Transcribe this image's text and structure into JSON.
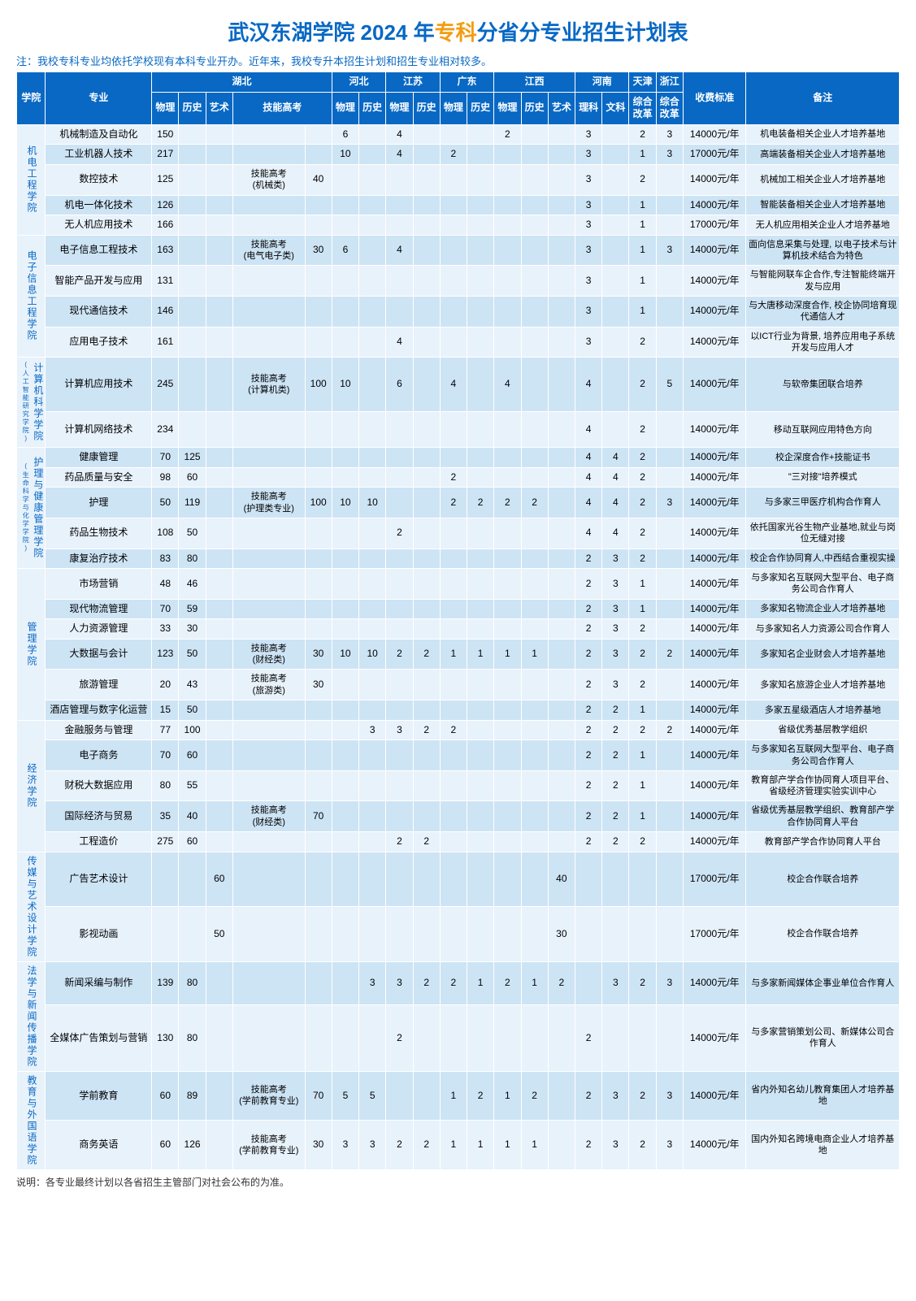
{
  "title_pre": "武汉东湖学院 2024 年",
  "title_hl": "专科",
  "title_post": "分省分专业招生计划表",
  "note_top": "注：我校专科专业均依托学校现有本科专业开办。近年来，我校专升本招生计划和招生专业相对较多。",
  "note_bottom": "说明：各专业最终计划以各省招生主管部门对社会公布的为准。",
  "head": {
    "dept": "学院",
    "major": "专业",
    "prov_hubei": "湖北",
    "prov_hebei": "河北",
    "prov_jiangsu": "江苏",
    "prov_guangdong": "广东",
    "prov_jiangxi": "江西",
    "prov_henan": "河南",
    "prov_tianjin": "天津",
    "prov_zhejiang": "浙江",
    "fee": "收费标准",
    "remark": "备注",
    "wl": "物理",
    "ls": "历史",
    "ys": "艺术",
    "skill": "技能高考",
    "lk": "理科",
    "wk": "文科",
    "gg": "综合改革"
  },
  "depts": [
    {
      "name": "机电工程学院",
      "extra": "",
      "rows": [
        {
          "major": "机械制造及自动化",
          "v": [
            "150",
            "",
            "",
            "",
            "",
            "6",
            "",
            "4",
            "",
            "",
            "",
            "2",
            "",
            "",
            "3",
            "",
            "2",
            "3"
          ],
          "fee": "14000元/年",
          "rm": "机电装备相关企业人才培养基地"
        },
        {
          "major": "工业机器人技术",
          "v": [
            "217",
            "",
            "",
            "",
            "",
            "10",
            "",
            "4",
            "",
            "2",
            "",
            "",
            "",
            "",
            "3",
            "",
            "1",
            "3"
          ],
          "fee": "17000元/年",
          "rm": "高端装备相关企业人才培养基地"
        },
        {
          "major": "数控技术",
          "v": [
            "125",
            "",
            "",
            "技能高考\n(机械类)",
            "40",
            "",
            "",
            "",
            "",
            "",
            "",
            "",
            "",
            "",
            "3",
            "",
            "2",
            ""
          ],
          "fee": "14000元/年",
          "rm": "机械加工相关企业人才培养基地"
        },
        {
          "major": "机电一体化技术",
          "v": [
            "126",
            "",
            "",
            "",
            "",
            "",
            "",
            "",
            "",
            "",
            "",
            "",
            "",
            "",
            "3",
            "",
            "1",
            ""
          ],
          "fee": "14000元/年",
          "rm": "智能装备相关企业人才培养基地"
        },
        {
          "major": "无人机应用技术",
          "v": [
            "166",
            "",
            "",
            "",
            "",
            "",
            "",
            "",
            "",
            "",
            "",
            "",
            "",
            "",
            "3",
            "",
            "1",
            ""
          ],
          "fee": "17000元/年",
          "rm": "无人机应用相关企业人才培养基地"
        }
      ]
    },
    {
      "name": "电子信息工程学院",
      "extra": "",
      "rows": [
        {
          "major": "电子信息工程技术",
          "v": [
            "163",
            "",
            "",
            "技能高考\n(电气电子类)",
            "30",
            "6",
            "",
            "4",
            "",
            "",
            "",
            "",
            "",
            "",
            "3",
            "",
            "1",
            "3"
          ],
          "fee": "14000元/年",
          "rm": "面向信息采集与处理, 以电子技术与计算机技术结合为特色"
        },
        {
          "major": "智能产品开发与应用",
          "v": [
            "131",
            "",
            "",
            "",
            "",
            "",
            "",
            "",
            "",
            "",
            "",
            "",
            "",
            "",
            "3",
            "",
            "1",
            ""
          ],
          "fee": "14000元/年",
          "rm": "与智能网联车企合作,专注智能终端开发与应用"
        },
        {
          "major": "现代通信技术",
          "v": [
            "146",
            "",
            "",
            "",
            "",
            "",
            "",
            "",
            "",
            "",
            "",
            "",
            "",
            "",
            "3",
            "",
            "1",
            ""
          ],
          "fee": "14000元/年",
          "rm": "与大唐移动深度合作, 校企协同培育现代通信人才"
        },
        {
          "major": "应用电子技术",
          "v": [
            "161",
            "",
            "",
            "",
            "",
            "",
            "",
            "4",
            "",
            "",
            "",
            "",
            "",
            "",
            "3",
            "",
            "2",
            ""
          ],
          "fee": "14000元/年",
          "rm": "以ICT行业为背景, 培养应用电子系统开发与应用人才"
        }
      ]
    },
    {
      "name": "计算机科学学院",
      "extra": "(人工智能研究学院)",
      "rows": [
        {
          "major": "计算机应用技术",
          "v": [
            "245",
            "",
            "",
            "技能高考\n(计算机类)",
            "100",
            "10",
            "",
            "6",
            "",
            "4",
            "",
            "4",
            "",
            "",
            "4",
            "",
            "2",
            "5"
          ],
          "fee": "14000元/年",
          "rm": "与软帝集团联合培养"
        },
        {
          "major": "计算机网络技术",
          "v": [
            "234",
            "",
            "",
            "",
            "",
            "",
            "",
            "",
            "",
            "",
            "",
            "",
            "",
            "",
            "4",
            "",
            "2",
            ""
          ],
          "fee": "14000元/年",
          "rm": "移动互联网应用特色方向"
        }
      ]
    },
    {
      "name": "护理与健康管理学院",
      "extra": "(生命科学与化学学院)",
      "rows": [
        {
          "major": "健康管理",
          "v": [
            "70",
            "125",
            "",
            "",
            "",
            "",
            "",
            "",
            "",
            "",
            "",
            "",
            "",
            "",
            "4",
            "4",
            "2",
            ""
          ],
          "fee": "14000元/年",
          "rm": "校企深度合作+技能证书"
        },
        {
          "major": "药品质量与安全",
          "v": [
            "98",
            "60",
            "",
            "",
            "",
            "",
            "",
            "",
            "",
            "2",
            "",
            "",
            "",
            "",
            "4",
            "4",
            "2",
            ""
          ],
          "fee": "14000元/年",
          "rm": "\"三对接\"培养模式"
        },
        {
          "major": "护理",
          "v": [
            "50",
            "119",
            "",
            "技能高考\n(护理类专业)",
            "100",
            "10",
            "10",
            "",
            "",
            "2",
            "2",
            "2",
            "2",
            "",
            "4",
            "4",
            "2",
            "3"
          ],
          "fee": "14000元/年",
          "rm": "与多家三甲医疗机构合作育人"
        },
        {
          "major": "药品生物技术",
          "v": [
            "108",
            "50",
            "",
            "",
            "",
            "",
            "",
            "2",
            "",
            "",
            "",
            "",
            "",
            "",
            "4",
            "4",
            "2",
            ""
          ],
          "fee": "14000元/年",
          "rm": "依托国家光谷生物产业基地,就业与岗位无缝对接"
        },
        {
          "major": "康复治疗技术",
          "v": [
            "83",
            "80",
            "",
            "",
            "",
            "",
            "",
            "",
            "",
            "",
            "",
            "",
            "",
            "",
            "2",
            "3",
            "2",
            ""
          ],
          "fee": "14000元/年",
          "rm": "校企合作协同育人,中西结合重视实操"
        }
      ]
    },
    {
      "name": "管理学院",
      "extra": "",
      "rows": [
        {
          "major": "市场营销",
          "v": [
            "48",
            "46",
            "",
            "",
            "",
            "",
            "",
            "",
            "",
            "",
            "",
            "",
            "",
            "",
            "2",
            "3",
            "1",
            ""
          ],
          "fee": "14000元/年",
          "rm": "与多家知名互联网大型平台、电子商务公司合作育人"
        },
        {
          "major": "现代物流管理",
          "v": [
            "70",
            "59",
            "",
            "",
            "",
            "",
            "",
            "",
            "",
            "",
            "",
            "",
            "",
            "",
            "2",
            "3",
            "1",
            ""
          ],
          "fee": "14000元/年",
          "rm": "多家知名物流企业人才培养基地"
        },
        {
          "major": "人力资源管理",
          "v": [
            "33",
            "30",
            "",
            "",
            "",
            "",
            "",
            "",
            "",
            "",
            "",
            "",
            "",
            "",
            "2",
            "3",
            "2",
            ""
          ],
          "fee": "14000元/年",
          "rm": "与多家知名人力资源公司合作育人"
        },
        {
          "major": "大数据与会计",
          "v": [
            "123",
            "50",
            "",
            "技能高考\n(财经类)",
            "30",
            "10",
            "10",
            "2",
            "2",
            "1",
            "1",
            "1",
            "1",
            "",
            "2",
            "3",
            "2",
            "2"
          ],
          "fee": "14000元/年",
          "rm": "多家知名企业财会人才培养基地"
        },
        {
          "major": "旅游管理",
          "v": [
            "20",
            "43",
            "",
            "技能高考\n(旅游类)",
            "30",
            "",
            "",
            "",
            "",
            "",
            "",
            "",
            "",
            "",
            "2",
            "3",
            "2",
            ""
          ],
          "fee": "14000元/年",
          "rm": "多家知名旅游企业人才培养基地"
        },
        {
          "major": "酒店管理与数字化运营",
          "v": [
            "15",
            "50",
            "",
            "",
            "",
            "",
            "",
            "",
            "",
            "",
            "",
            "",
            "",
            "",
            "2",
            "2",
            "1",
            ""
          ],
          "fee": "14000元/年",
          "rm": "多家五星级酒店人才培养基地"
        }
      ]
    },
    {
      "name": "经济学院",
      "extra": "",
      "rows": [
        {
          "major": "金融服务与管理",
          "v": [
            "77",
            "100",
            "",
            "",
            "",
            "",
            "3",
            "3",
            "2",
            "2",
            "",
            "",
            "",
            "",
            "2",
            "2",
            "2",
            "2"
          ],
          "fee": "14000元/年",
          "rm": "省级优秀基层教学组织"
        },
        {
          "major": "电子商务",
          "v": [
            "70",
            "60",
            "",
            "",
            "",
            "",
            "",
            "",
            "",
            "",
            "",
            "",
            "",
            "",
            "2",
            "2",
            "1",
            ""
          ],
          "fee": "14000元/年",
          "rm": "与多家知名互联网大型平台、电子商务公司合作育人"
        },
        {
          "major": "财税大数据应用",
          "v": [
            "80",
            "55",
            "",
            "",
            "",
            "",
            "",
            "",
            "",
            "",
            "",
            "",
            "",
            "",
            "2",
            "2",
            "1",
            ""
          ],
          "fee": "14000元/年",
          "rm": "教育部产学合作协同育人项目平台、省级经济管理实验实训中心"
        },
        {
          "major": "国际经济与贸易",
          "v": [
            "35",
            "40",
            "",
            "技能高考\n(财经类)",
            "70",
            "",
            "",
            "",
            "",
            "",
            "",
            "",
            "",
            "",
            "2",
            "2",
            "1",
            ""
          ],
          "fee": "14000元/年",
          "rm": "省级优秀基层教学组织、教育部产学合作协同育人平台"
        },
        {
          "major": "工程造价",
          "v": [
            "275",
            "60",
            "",
            "",
            "",
            "",
            "",
            "2",
            "2",
            "",
            "",
            "",
            "",
            "",
            "2",
            "2",
            "2",
            ""
          ],
          "fee": "14000元/年",
          "rm": "教育部产学合作协同育人平台"
        }
      ]
    },
    {
      "name": "传媒与艺术设计学院",
      "extra": "",
      "rows": [
        {
          "major": "广告艺术设计",
          "v": [
            "",
            "",
            "60",
            "",
            "",
            "",
            "",
            "",
            "",
            "",
            "",
            "",
            "",
            "40",
            "",
            "",
            "",
            ""
          ],
          "fee": "17000元/年",
          "rm": "校企合作联合培养"
        },
        {
          "major": "影视动画",
          "v": [
            "",
            "",
            "50",
            "",
            "",
            "",
            "",
            "",
            "",
            "",
            "",
            "",
            "",
            "30",
            "",
            "",
            "",
            ""
          ],
          "fee": "17000元/年",
          "rm": "校企合作联合培养"
        }
      ]
    },
    {
      "name": "法学与新闻传播学院",
      "extra": "",
      "rows": [
        {
          "major": "新闻采编与制作",
          "v": [
            "139",
            "80",
            "",
            "",
            "",
            "",
            "3",
            "3",
            "2",
            "2",
            "1",
            "2",
            "1",
            "2",
            "",
            "3",
            "2",
            "3"
          ],
          "fee": "14000元/年",
          "rm": "与多家新闻媒体企事业单位合作育人"
        },
        {
          "major": "全媒体广告策划与营销",
          "v": [
            "130",
            "80",
            "",
            "",
            "",
            "",
            "",
            "2",
            "",
            "",
            "",
            "",
            "",
            "",
            "2",
            "",
            "",
            ""
          ],
          "fee": "14000元/年",
          "rm": "与多家营销策划公司、新媒体公司合作育人"
        }
      ]
    },
    {
      "name": "教育与外国语学院",
      "extra": "",
      "rows": [
        {
          "major": "学前教育",
          "v": [
            "60",
            "89",
            "",
            "技能高考\n(学前教育专业)",
            "70",
            "5",
            "5",
            "",
            "",
            "1",
            "2",
            "1",
            "2",
            "",
            "2",
            "3",
            "2",
            "3"
          ],
          "fee": "14000元/年",
          "rm": "省内外知名幼儿教育集团人才培养基地"
        },
        {
          "major": "商务英语",
          "v": [
            "60",
            "126",
            "",
            "技能高考\n(学前教育专业)",
            "30",
            "3",
            "3",
            "2",
            "2",
            "1",
            "1",
            "1",
            "1",
            "",
            "2",
            "3",
            "2",
            "3"
          ],
          "fee": "14000元/年",
          "rm": "国内外知名跨境电商企业人才培养基地"
        }
      ]
    }
  ]
}
